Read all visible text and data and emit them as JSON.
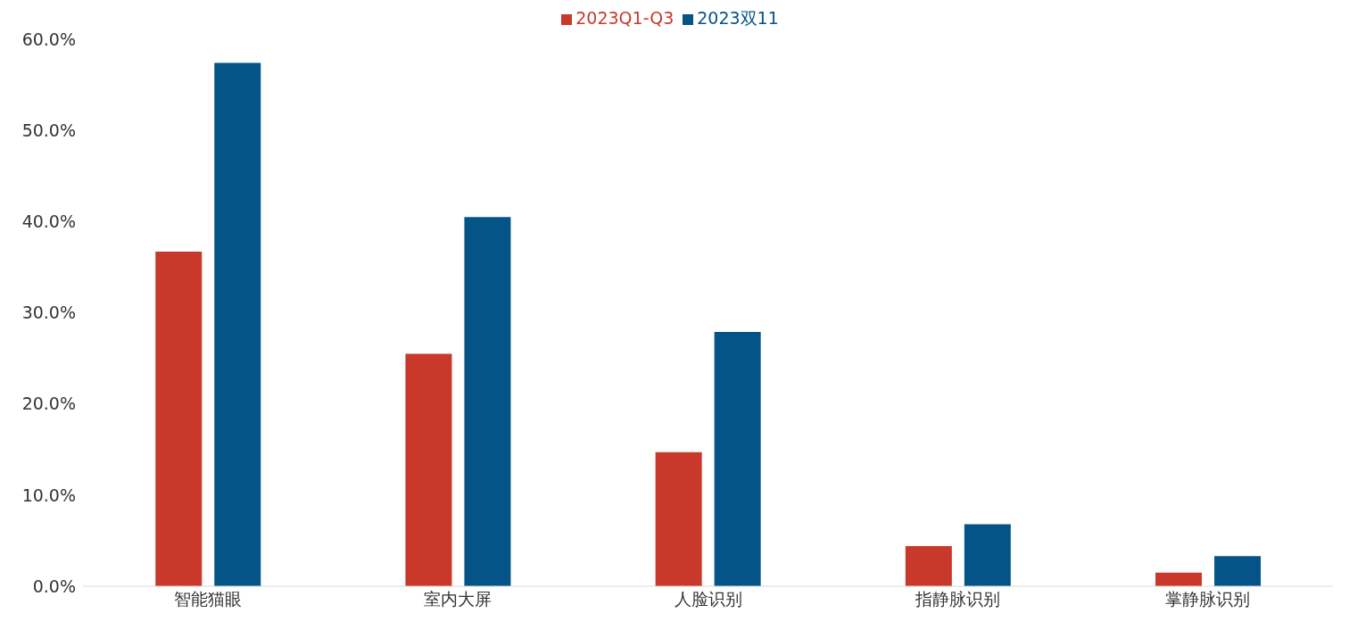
{
  "chart_data": {
    "type": "bar",
    "categories": [
      "智能猫眼",
      "室内大屏",
      "人脸识别",
      "指静脉识别",
      "掌静脉识别"
    ],
    "series": [
      {
        "name": "2023Q1-Q3",
        "color": "#c8392b",
        "values": [
          36.7,
          25.5,
          14.7,
          4.4,
          1.5
        ]
      },
      {
        "name": "2023双11",
        "color": "#045487",
        "values": [
          57.4,
          40.5,
          27.9,
          6.8,
          3.3
        ]
      }
    ],
    "ylim": [
      0,
      60
    ],
    "yticks": [
      {
        "value": 0,
        "label": "0.0%"
      },
      {
        "value": 10,
        "label": "10.0%"
      },
      {
        "value": 20,
        "label": "20.0%"
      },
      {
        "value": 30,
        "label": "30.0%"
      },
      {
        "value": 40,
        "label": "40.0%"
      },
      {
        "value": 50,
        "label": "50.0%"
      },
      {
        "value": 60,
        "label": "60.0%"
      }
    ],
    "grid": false,
    "legend": "top"
  }
}
